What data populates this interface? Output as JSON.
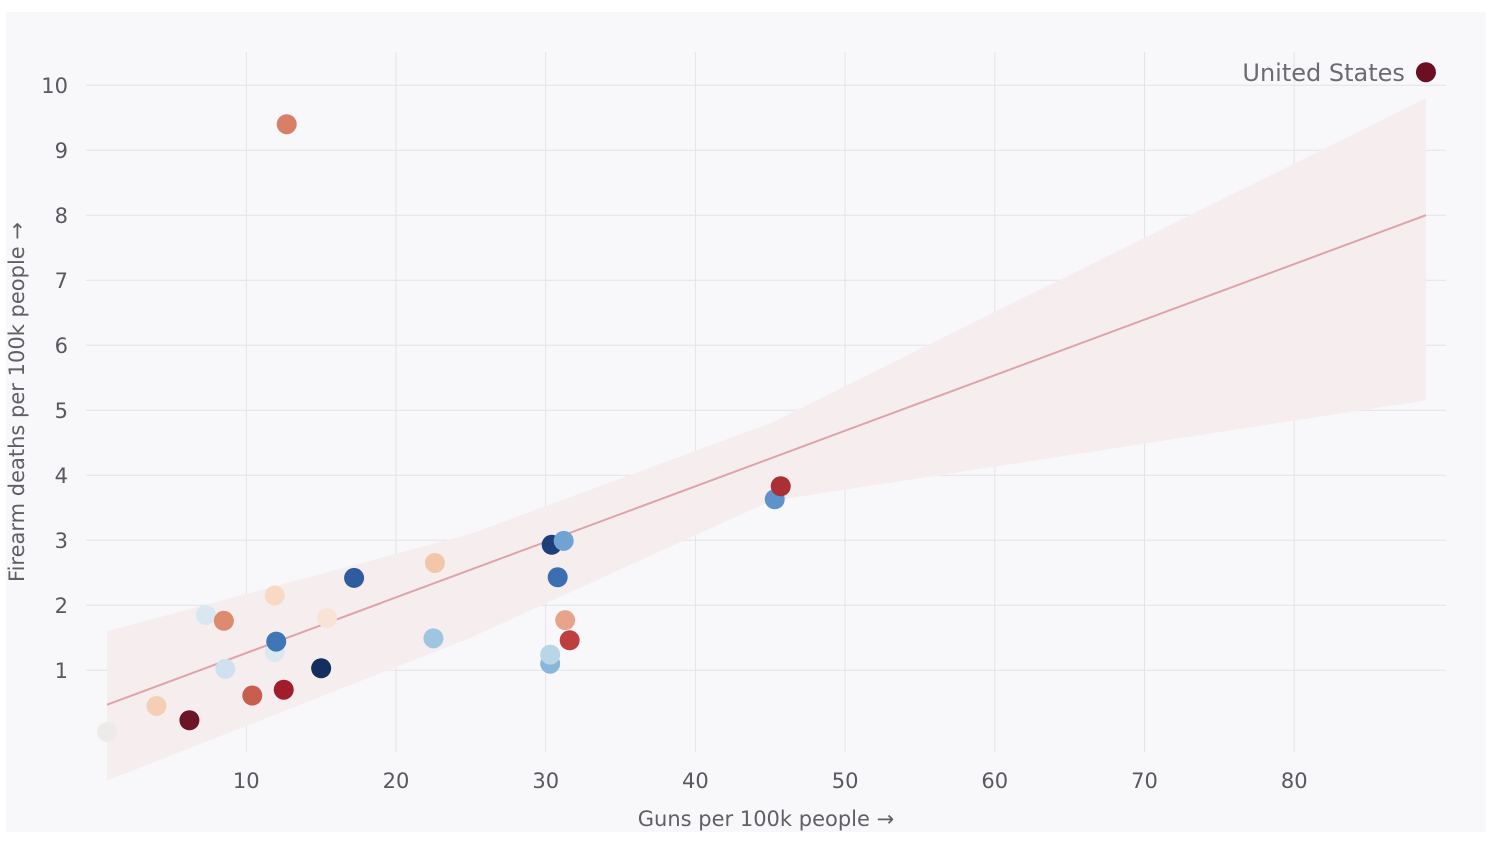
{
  "chart_data": {
    "type": "scatter",
    "title": "",
    "xlabel": "Guns per 100k people →",
    "ylabel": "Firearm deaths per 100k people →",
    "xlim": [
      0,
      90
    ],
    "ylim": [
      -0.3,
      10.5
    ],
    "x_ticks": [
      10,
      20,
      30,
      40,
      50,
      60,
      70,
      80
    ],
    "y_ticks": [
      1,
      2,
      3,
      4,
      5,
      6,
      7,
      8,
      9,
      10
    ],
    "grid": true,
    "trend": {
      "line": [
        [
          0.7,
          0.47
        ],
        [
          88.8,
          8.0
        ]
      ],
      "band_upper": [
        [
          0.7,
          1.6
        ],
        [
          25,
          3.1
        ],
        [
          45,
          4.8
        ],
        [
          88.8,
          9.8
        ]
      ],
      "band_lower": [
        [
          0.7,
          -0.7
        ],
        [
          25,
          1.5
        ],
        [
          45,
          3.6
        ],
        [
          88.8,
          5.15
        ]
      ]
    },
    "trend_colors": {
      "line": "#dfa3aa",
      "band": "#f6eeee"
    },
    "points": [
      {
        "x": 0.7,
        "y": 0.05,
        "color": "#ecebe9"
      },
      {
        "x": 4.0,
        "y": 0.45,
        "color": "#f5cfb5"
      },
      {
        "x": 6.2,
        "y": 0.23,
        "color": "#6b1526"
      },
      {
        "x": 7.3,
        "y": 1.85,
        "color": "#d9e7f1"
      },
      {
        "x": 8.5,
        "y": 1.76,
        "color": "#dc8a70"
      },
      {
        "x": 8.6,
        "y": 1.02,
        "color": "#cfe1ee"
      },
      {
        "x": 10.4,
        "y": 0.61,
        "color": "#c75e4e"
      },
      {
        "x": 11.9,
        "y": 2.15,
        "color": "#f7d9c4"
      },
      {
        "x": 11.9,
        "y": 1.28,
        "color": "#dbe8f2"
      },
      {
        "x": 12.0,
        "y": 1.44,
        "color": "#3f77b6"
      },
      {
        "x": 12.5,
        "y": 0.7,
        "color": "#a01d2c"
      },
      {
        "x": 12.7,
        "y": 9.4,
        "color": "#d97f67"
      },
      {
        "x": 15.0,
        "y": 1.03,
        "color": "#142e5e"
      },
      {
        "x": 15.4,
        "y": 1.8,
        "color": "#f8e3d5"
      },
      {
        "x": 17.2,
        "y": 2.42,
        "color": "#2f5c9e"
      },
      {
        "x": 22.5,
        "y": 1.49,
        "color": "#9fc6e0"
      },
      {
        "x": 22.6,
        "y": 2.65,
        "color": "#f3c6aa"
      },
      {
        "x": 30.3,
        "y": 1.1,
        "color": "#8ab6db"
      },
      {
        "x": 30.3,
        "y": 1.24,
        "color": "#b9d5e8"
      },
      {
        "x": 30.4,
        "y": 2.93,
        "color": "#1d3f7a"
      },
      {
        "x": 30.8,
        "y": 2.43,
        "color": "#3b6fb0"
      },
      {
        "x": 31.2,
        "y": 2.99,
        "color": "#6fa3d2"
      },
      {
        "x": 31.3,
        "y": 1.77,
        "color": "#e8a48a"
      },
      {
        "x": 31.6,
        "y": 1.46,
        "color": "#bf3f3f"
      },
      {
        "x": 45.3,
        "y": 3.63,
        "color": "#5d93c8"
      },
      {
        "x": 45.7,
        "y": 3.83,
        "color": "#ac2f35"
      },
      {
        "x": 88.8,
        "y": 10.2,
        "color": "#6b1023",
        "label": "United States"
      }
    ]
  }
}
